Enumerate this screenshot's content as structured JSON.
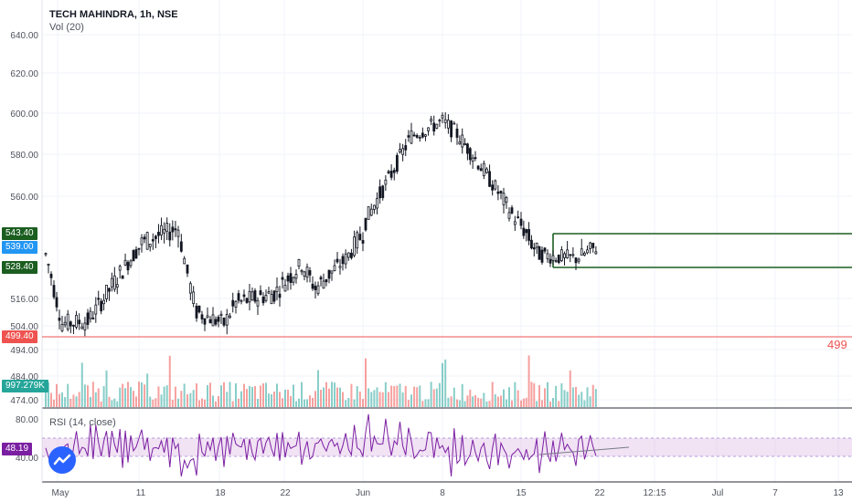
{
  "header": {
    "symbol_line": "TECH MAHINDRA, 1h, NSE",
    "volume_line": "Vol (20)",
    "rsi_line": "RSI (14, close)"
  },
  "price_axis": {
    "ticks": [
      "640.00",
      "620.00",
      "600.00",
      "580.00",
      "560.00",
      "516.00",
      "504.00",
      "494.00",
      "484.00",
      "474.00"
    ]
  },
  "rsi_axis": {
    "ticks": [
      "80.00",
      "40.00"
    ]
  },
  "tags": {
    "upper_level": "543.40",
    "last_price": "539.00",
    "lower_level": "528.40",
    "support": "499.40",
    "volume": "997.279K",
    "rsi": "48.19"
  },
  "support_label": "499",
  "time_axis": {
    "ticks": [
      "May",
      "11",
      "18",
      "22",
      "Jun",
      "8",
      "15",
      "22",
      "12:15",
      "Jul",
      "7",
      "13"
    ]
  },
  "colors": {
    "up": "#26a69a",
    "down": "#ef5350",
    "candle": "#131722",
    "levels": "#1b5e20",
    "support": "#ef5350",
    "rsi_line": "#7b1fa2",
    "rsi_band": "#e1bee7",
    "last_price": "#2196f3"
  },
  "chart_data": {
    "type": "candlestick",
    "title": "TECH MAHINDRA, 1h, NSE",
    "ylim": [
      474,
      640
    ],
    "levels": [
      {
        "label": "543.40",
        "value": 543.4
      },
      {
        "label": "528.40",
        "value": 528.4
      },
      {
        "label": "499.40",
        "value": 499.4
      }
    ],
    "close_path": [
      {
        "x": "May",
        "y": 535
      },
      {
        "x": "May 6",
        "y": 505
      },
      {
        "x": "May 8",
        "y": 506
      },
      {
        "x": "11",
        "y": 531
      },
      {
        "x": "May 13",
        "y": 540
      },
      {
        "x": "May 14",
        "y": 546
      },
      {
        "x": "May 15",
        "y": 526
      },
      {
        "x": "18",
        "y": 510
      },
      {
        "x": "May 19",
        "y": 505
      },
      {
        "x": "May 20",
        "y": 514
      },
      {
        "x": "22",
        "y": 518
      },
      {
        "x": "May 27",
        "y": 530
      },
      {
        "x": "May 28",
        "y": 520
      },
      {
        "x": "May 29",
        "y": 531
      },
      {
        "x": "Jun",
        "y": 544
      },
      {
        "x": "Jun 2",
        "y": 549
      },
      {
        "x": "Jun 3",
        "y": 568
      },
      {
        "x": "Jun 4",
        "y": 589
      },
      {
        "x": "8",
        "y": 596
      },
      {
        "x": "Jun 9",
        "y": 590
      },
      {
        "x": "Jun 10",
        "y": 578
      },
      {
        "x": "Jun 11",
        "y": 560
      },
      {
        "x": "Jun 12",
        "y": 552
      },
      {
        "x": "15",
        "y": 547
      },
      {
        "x": "Jun 16",
        "y": 535
      },
      {
        "x": "Jun 17",
        "y": 534
      },
      {
        "x": "Jun 18",
        "y": 533
      },
      {
        "x": "22",
        "y": 539
      }
    ],
    "rsi": {
      "name": "RSI (14, close)",
      "band": [
        40,
        60
      ],
      "last": 48.19
    }
  }
}
